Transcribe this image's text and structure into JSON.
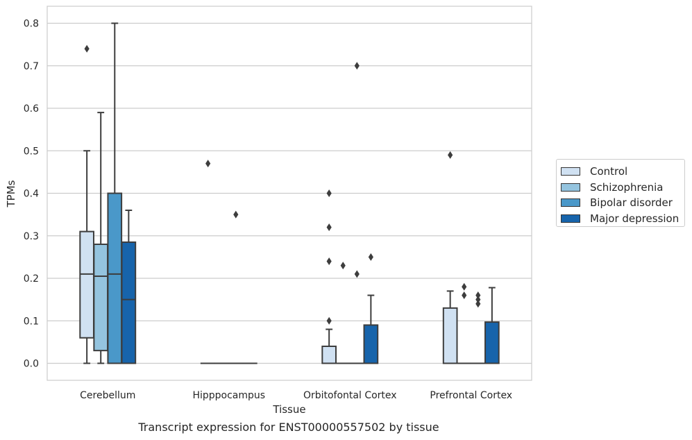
{
  "caption": "Transcript expression for ENST00000557502 by tissue",
  "chart_data": {
    "type": "box",
    "xlabel": "Tissue",
    "ylabel": "TPMs",
    "ylim": [
      -0.04,
      0.84
    ],
    "yticks": [
      "0.0",
      "0.1",
      "0.2",
      "0.3",
      "0.4",
      "0.5",
      "0.6",
      "0.7",
      "0.8"
    ],
    "grid": true,
    "legend_position": "right",
    "categories": [
      "Cerebellum",
      "Hipppocampus",
      "Orbitofontal Cortex",
      "Prefrontal Cortex"
    ],
    "series": [
      {
        "name": "Control",
        "color": "#d0e1f2",
        "boxes": [
          {
            "whislo": 0.0,
            "q1": 0.06,
            "med": 0.21,
            "q3": 0.31,
            "whishi": 0.5,
            "fliers": [
              0.74
            ]
          },
          {
            "whislo": 0.0,
            "q1": 0.0,
            "med": 0.0,
            "q3": 0.0,
            "whishi": 0.0,
            "fliers": [
              0.47
            ]
          },
          {
            "whislo": 0.0,
            "q1": 0.0,
            "med": 0.0,
            "q3": 0.04,
            "whishi": 0.08,
            "fliers": [
              0.1,
              0.24,
              0.32,
              0.4
            ]
          },
          {
            "whislo": 0.0,
            "q1": 0.0,
            "med": 0.0,
            "q3": 0.13,
            "whishi": 0.17,
            "fliers": [
              0.49
            ]
          }
        ]
      },
      {
        "name": "Schizophrenia",
        "color": "#94c4df",
        "boxes": [
          {
            "whislo": 0.0,
            "q1": 0.03,
            "med": 0.205,
            "q3": 0.28,
            "whishi": 0.59,
            "fliers": []
          },
          {
            "whislo": 0.0,
            "q1": 0.0,
            "med": 0.0,
            "q3": 0.0,
            "whishi": 0.0,
            "fliers": []
          },
          {
            "whislo": 0.0,
            "q1": 0.0,
            "med": 0.0,
            "q3": 0.0,
            "whishi": 0.0,
            "fliers": [
              0.23
            ]
          },
          {
            "whislo": 0.0,
            "q1": 0.0,
            "med": 0.0,
            "q3": 0.0,
            "whishi": 0.0,
            "fliers": [
              0.16,
              0.18
            ]
          }
        ]
      },
      {
        "name": "Bipolar disorder",
        "color": "#4a98c9",
        "boxes": [
          {
            "whislo": 0.0,
            "q1": 0.0,
            "med": 0.21,
            "q3": 0.4,
            "whishi": 0.8,
            "fliers": []
          },
          {
            "whislo": 0.0,
            "q1": 0.0,
            "med": 0.0,
            "q3": 0.0,
            "whishi": 0.0,
            "fliers": [
              0.35
            ]
          },
          {
            "whislo": 0.0,
            "q1": 0.0,
            "med": 0.0,
            "q3": 0.0,
            "whishi": 0.0,
            "fliers": [
              0.21,
              0.7
            ]
          },
          {
            "whislo": 0.0,
            "q1": 0.0,
            "med": 0.0,
            "q3": 0.0,
            "whishi": 0.0,
            "fliers": [
              0.14,
              0.15,
              0.16
            ]
          }
        ]
      },
      {
        "name": "Major depression",
        "color": "#1764ab",
        "boxes": [
          {
            "whislo": 0.0,
            "q1": 0.0,
            "med": 0.15,
            "q3": 0.285,
            "whishi": 0.36,
            "fliers": []
          },
          {
            "whislo": 0.0,
            "q1": 0.0,
            "med": 0.0,
            "q3": 0.0,
            "whishi": 0.0,
            "fliers": []
          },
          {
            "whislo": 0.0,
            "q1": 0.0,
            "med": 0.0,
            "q3": 0.09,
            "whishi": 0.16,
            "fliers": [
              0.25
            ]
          },
          {
            "whislo": 0.0,
            "q1": 0.0,
            "med": 0.0,
            "q3": 0.097,
            "whishi": 0.178,
            "fliers": []
          }
        ]
      }
    ]
  }
}
